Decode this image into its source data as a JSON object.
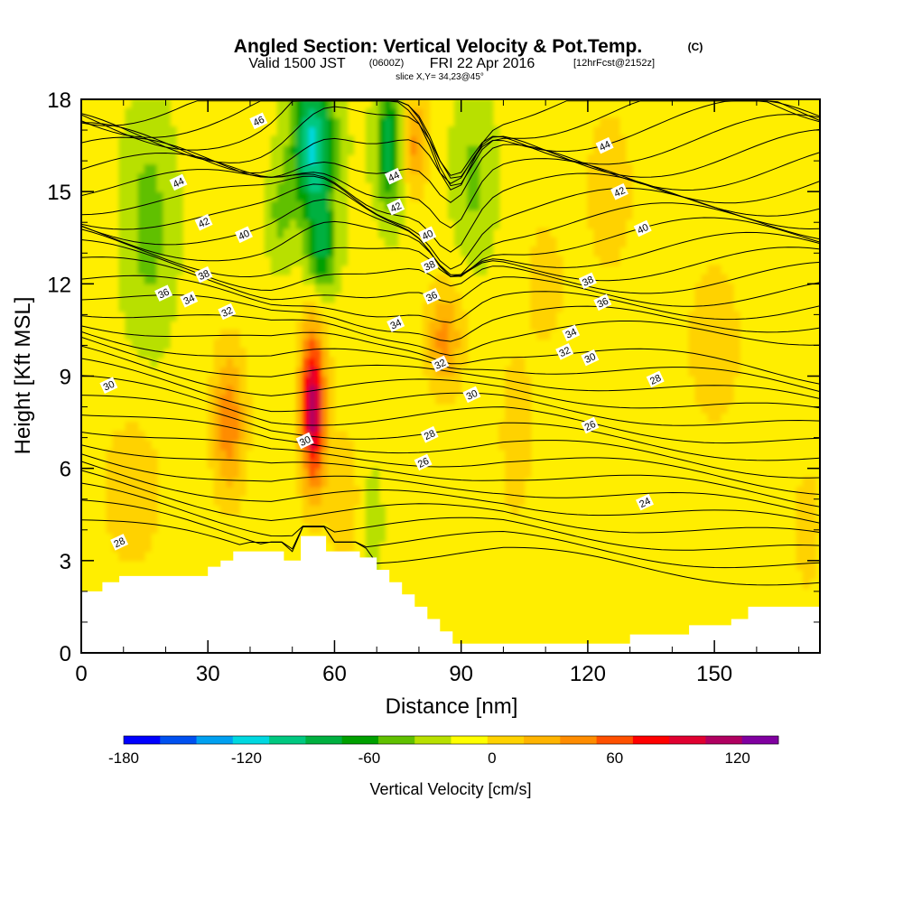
{
  "header": {
    "title_main": "Angled Section: Vertical Velocity & Pot.Temp.",
    "title_unit": "(C)",
    "sub_a": "Valid 1500 JST",
    "sub_b": "(0600Z)",
    "sub_c": "FRI 22 Apr 2016",
    "sub_d": "[12hrFcst@2152z]",
    "slice": "slice X,Y= 34,23@45°"
  },
  "chart_data": {
    "type": "heatmap",
    "xlabel": "Distance [nm]",
    "ylabel": "Height [Kft MSL]",
    "xlim": [
      0,
      175
    ],
    "ylim": [
      0,
      18
    ],
    "x_ticks": [
      0,
      30,
      60,
      90,
      120,
      150
    ],
    "y_ticks": [
      0,
      3,
      6,
      9,
      12,
      15,
      18
    ],
    "colorbar": {
      "label": "Vertical Velocity [cm/s]",
      "tick_labels": [
        "-180",
        "-120",
        "-60",
        "0",
        "60",
        "120"
      ],
      "tick_values": [
        -180,
        -120,
        -60,
        0,
        60,
        120
      ],
      "range": [
        -180,
        140
      ],
      "bin_width": 20,
      "colors": [
        "#0000ff",
        "#0050f0",
        "#00a0f0",
        "#00d8e0",
        "#00c880",
        "#00b040",
        "#00a000",
        "#60c000",
        "#b8e000",
        "#ffff00",
        "#ffd200",
        "#ffb400",
        "#ff8c00",
        "#ff5000",
        "#ff0000",
        "#e00030",
        "#b00060",
        "#8000a0"
      ]
    },
    "theta_contours": {
      "units": "C",
      "labels": [
        {
          "text": "46",
          "x": 42,
          "y": 17.3
        },
        {
          "text": "44",
          "x": 23,
          "y": 15.3
        },
        {
          "text": "42",
          "x": 29,
          "y": 14.0
        },
        {
          "text": "40",
          "x": 38.5,
          "y": 13.6
        },
        {
          "text": "38",
          "x": 29,
          "y": 12.3
        },
        {
          "text": "36",
          "x": 19.5,
          "y": 11.7
        },
        {
          "text": "34",
          "x": 25.5,
          "y": 11.5
        },
        {
          "text": "32",
          "x": 34.5,
          "y": 11.1
        },
        {
          "text": "30",
          "x": 6.5,
          "y": 8.7
        },
        {
          "text": "28",
          "x": 9,
          "y": 3.6
        },
        {
          "text": "30",
          "x": 53,
          "y": 6.9
        },
        {
          "text": "44",
          "x": 74,
          "y": 15.5
        },
        {
          "text": "42",
          "x": 74.5,
          "y": 14.5
        },
        {
          "text": "40",
          "x": 82,
          "y": 13.6
        },
        {
          "text": "38",
          "x": 82.5,
          "y": 12.6
        },
        {
          "text": "36",
          "x": 83,
          "y": 11.6
        },
        {
          "text": "34",
          "x": 74.5,
          "y": 10.7
        },
        {
          "text": "32",
          "x": 85,
          "y": 9.4
        },
        {
          "text": "30",
          "x": 92.5,
          "y": 8.4
        },
        {
          "text": "28",
          "x": 82.5,
          "y": 7.1
        },
        {
          "text": "26",
          "x": 81,
          "y": 6.2
        },
        {
          "text": "44",
          "x": 124,
          "y": 16.5
        },
        {
          "text": "42",
          "x": 127.5,
          "y": 15.0
        },
        {
          "text": "40",
          "x": 133,
          "y": 13.8
        },
        {
          "text": "38",
          "x": 120,
          "y": 12.1
        },
        {
          "text": "36",
          "x": 123.5,
          "y": 11.4
        },
        {
          "text": "34",
          "x": 116,
          "y": 10.4
        },
        {
          "text": "32",
          "x": 114.5,
          "y": 9.8
        },
        {
          "text": "30",
          "x": 120.5,
          "y": 9.6
        },
        {
          "text": "28",
          "x": 136,
          "y": 8.9
        },
        {
          "text": "26",
          "x": 120.5,
          "y": 7.4
        },
        {
          "text": "24",
          "x": 133.5,
          "y": 4.9
        }
      ]
    }
  }
}
